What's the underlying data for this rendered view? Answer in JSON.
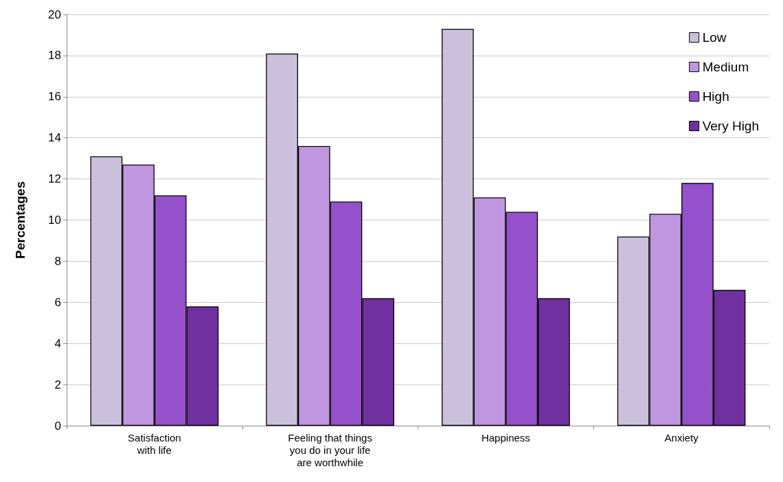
{
  "chart_data": {
    "type": "bar",
    "ylabel": "Percentages",
    "categories": [
      "Satisfaction\nwith life",
      "Feeling that things\nyou do in your life\nare worthwhile",
      "Happiness",
      "Anxiety"
    ],
    "series": [
      {
        "name": "Low",
        "color": "#cbc0dc",
        "values": [
          13.1,
          18.1,
          19.3,
          9.2
        ]
      },
      {
        "name": "Medium",
        "color": "#bf96df",
        "values": [
          12.7,
          13.6,
          11.1,
          10.3
        ]
      },
      {
        "name": "High",
        "color": "#9550cb",
        "values": [
          11.2,
          10.9,
          10.4,
          11.8
        ]
      },
      {
        "name": "Very High",
        "color": "#7030a0",
        "values": [
          5.8,
          6.2,
          6.2,
          6.6
        ]
      }
    ],
    "ylim": [
      0,
      20
    ],
    "yticks": [
      0,
      2,
      4,
      6,
      8,
      10,
      12,
      14,
      16,
      18,
      20
    ],
    "grid": "y",
    "legend": "top right"
  }
}
